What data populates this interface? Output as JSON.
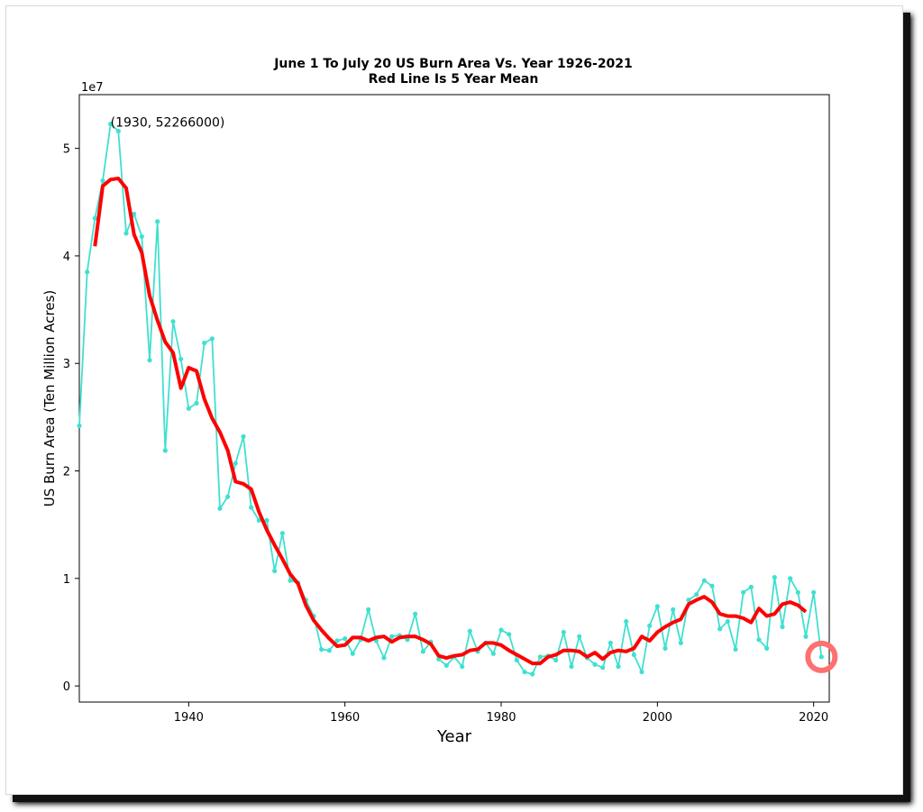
{
  "chart_data": {
    "type": "line",
    "title": "June 1 To July 20 US Burn Area Vs. Year 1926-2021",
    "subtitle": "Red Line Is 5 Year Mean",
    "xlabel": "Year",
    "ylabel": "US Burn Area (Ten Million Acres)",
    "y_multiplier_label": "1e7",
    "xlim": [
      1926,
      2022
    ],
    "ylim": [
      -1500000,
      55000000
    ],
    "x_ticks": [
      1940,
      1960,
      1980,
      2000,
      2020
    ],
    "y_ticks": [
      0,
      10000000,
      20000000,
      30000000,
      40000000,
      50000000
    ],
    "y_tick_labels": [
      "0",
      "1",
      "2",
      "3",
      "4",
      "5"
    ],
    "annotation": {
      "text": "(1930, 52266000)",
      "x": 1930,
      "y": 52266000
    },
    "highlight": {
      "x": 2021,
      "y": 2700000,
      "color": "#ff7070"
    },
    "grid": false,
    "series": [
      {
        "color": "#40e0d0",
        "x": [
          1926,
          1927,
          1928,
          1929,
          1930,
          1931,
          1932,
          1933,
          1934,
          1935,
          1936,
          1937,
          1938,
          1939,
          1940,
          1941,
          1942,
          1943,
          1944,
          1945,
          1946,
          1947,
          1948,
          1949,
          1950,
          1951,
          1952,
          1953,
          1954,
          1955,
          1956,
          1957,
          1958,
          1959,
          1960,
          1961,
          1962,
          1963,
          1964,
          1965,
          1966,
          1967,
          1968,
          1969,
          1970,
          1971,
          1972,
          1973,
          1974,
          1975,
          1976,
          1977,
          1978,
          1979,
          1980,
          1981,
          1982,
          1983,
          1984,
          1985,
          1986,
          1987,
          1988,
          1989,
          1990,
          1991,
          1992,
          1993,
          1994,
          1995,
          1996,
          1997,
          1998,
          1999,
          2000,
          2001,
          2002,
          2003,
          2004,
          2005,
          2006,
          2007,
          2008,
          2009,
          2010,
          2011,
          2012,
          2013,
          2014,
          2015,
          2016,
          2017,
          2018,
          2019,
          2020,
          2021
        ],
        "values": [
          24200000,
          38500000,
          43500000,
          47000000,
          52266000,
          51600000,
          42100000,
          43900000,
          41800000,
          30300000,
          43200000,
          21900000,
          33900000,
          30400000,
          25800000,
          26300000,
          31900000,
          32300000,
          16500000,
          17600000,
          20700000,
          23200000,
          16600000,
          15400000,
          15400000,
          10700000,
          14200000,
          9800000,
          9600000,
          8000000,
          6500000,
          3400000,
          3300000,
          4200000,
          4400000,
          3000000,
          4300000,
          7100000,
          4200000,
          2600000,
          4600000,
          4700000,
          4300000,
          6700000,
          3200000,
          4100000,
          2500000,
          1900000,
          2700000,
          1800000,
          5100000,
          3200000,
          4000000,
          3000000,
          5200000,
          4800000,
          2400000,
          1300000,
          1100000,
          2700000,
          2800000,
          2400000,
          5000000,
          1800000,
          4600000,
          2600000,
          2000000,
          1700000,
          4000000,
          1800000,
          6000000,
          2900000,
          1300000,
          5600000,
          7400000,
          3500000,
          7100000,
          4000000,
          8000000,
          8500000,
          9800000,
          9300000,
          5300000,
          6000000,
          3400000,
          8700000,
          9200000,
          4300000,
          3500000,
          10100000,
          5500000,
          10000000,
          8700000,
          4600000,
          8700000,
          2700000
        ]
      },
      {
        "name": "5 Year Mean",
        "color": "#ff0000",
        "x": [
          1928,
          1929,
          1930,
          1931,
          1932,
          1933,
          1934,
          1935,
          1936,
          1937,
          1938,
          1939,
          1940,
          1941,
          1942,
          1943,
          1944,
          1945,
          1946,
          1947,
          1948,
          1949,
          1950,
          1951,
          1952,
          1953,
          1954,
          1955,
          1956,
          1957,
          1958,
          1959,
          1960,
          1961,
          1962,
          1963,
          1964,
          1965,
          1966,
          1967,
          1968,
          1969,
          1970,
          1971,
          1972,
          1973,
          1974,
          1975,
          1976,
          1977,
          1978,
          1979,
          1980,
          1981,
          1982,
          1983,
          1984,
          1985,
          1986,
          1987,
          1988,
          1989,
          1990,
          1991,
          1992,
          1993,
          1994,
          1995,
          1996,
          1997,
          1998,
          1999,
          2000,
          2001,
          2002,
          2003,
          2004,
          2005,
          2006,
          2007,
          2008,
          2009,
          2010,
          2011,
          2012,
          2013,
          2014,
          2015,
          2016,
          2017,
          2018,
          2019
        ],
        "values": [
          40900000,
          46500000,
          47100000,
          47200000,
          46300000,
          42000000,
          40300000,
          36300000,
          34000000,
          32000000,
          31000000,
          27700000,
          29600000,
          29300000,
          26700000,
          24900000,
          23600000,
          21900000,
          19000000,
          18800000,
          18300000,
          16200000,
          14500000,
          13100000,
          11800000,
          10400000,
          9500000,
          7500000,
          6100000,
          5200000,
          4400000,
          3700000,
          3800000,
          4500000,
          4500000,
          4200000,
          4500000,
          4600000,
          4100000,
          4500000,
          4600000,
          4600000,
          4300000,
          3900000,
          2800000,
          2600000,
          2800000,
          2900000,
          3300000,
          3400000,
          4000000,
          4000000,
          3800000,
          3300000,
          2900000,
          2500000,
          2100000,
          2100000,
          2700000,
          2900000,
          3300000,
          3300000,
          3200000,
          2700000,
          3100000,
          2500000,
          3100000,
          3300000,
          3200000,
          3500000,
          4600000,
          4200000,
          5000000,
          5500000,
          5900000,
          6200000,
          7600000,
          8000000,
          8300000,
          7800000,
          6700000,
          6500000,
          6500000,
          6300000,
          5900000,
          7200000,
          6500000,
          6700000,
          7600000,
          7800000,
          7500000,
          6900000
        ]
      }
    ]
  }
}
